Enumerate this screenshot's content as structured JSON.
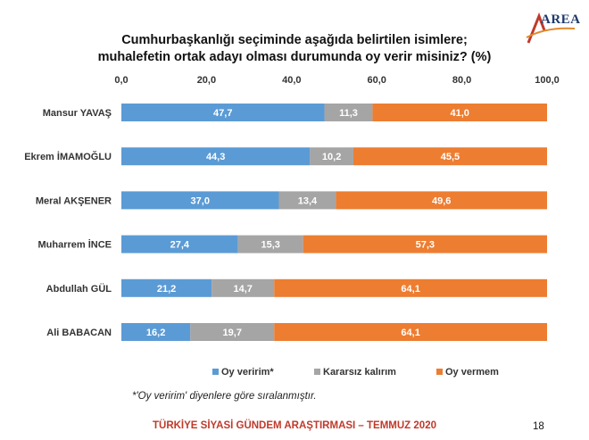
{
  "brand": {
    "logo_text": "AREA"
  },
  "chart_data": {
    "type": "bar",
    "orientation": "horizontal",
    "stacked": true,
    "title_line1": "Cumhurbaşkanlığı seçiminde aşağıda belirtilen isimlere;",
    "title_line2": "muhalefetin ortak adayı olması durumunda oy verir misiniz? (%)",
    "categories": [
      "Mansur YAVAŞ",
      "Ekrem İMAMOĞLU",
      "Meral AKŞENER",
      "Muharrem İNCE",
      "Abdullah GÜL",
      "Ali BABACAN"
    ],
    "series": [
      {
        "name": "Oy veririm*",
        "values": [
          47.7,
          44.3,
          37.0,
          27.4,
          21.2,
          16.2
        ],
        "labels": [
          "47,7",
          "44,3",
          "37,0",
          "27,4",
          "21,2",
          "16,2"
        ],
        "color": "#5b9bd5"
      },
      {
        "name": "Kararsız kalırım",
        "values": [
          11.3,
          10.2,
          13.4,
          15.3,
          14.7,
          19.7
        ],
        "labels": [
          "11,3",
          "10,2",
          "13,4",
          "15,3",
          "14,7",
          "19,7"
        ],
        "color": "#a5a5a5"
      },
      {
        "name": "Oy vermem",
        "values": [
          41.0,
          45.5,
          49.6,
          57.3,
          64.1,
          64.1
        ],
        "labels": [
          "41,0",
          "45,5",
          "49,6",
          "57,3",
          "64,1",
          "64,1"
        ],
        "color": "#ed7d31"
      }
    ],
    "xlim": [
      0,
      100
    ],
    "x_ticks": [
      0,
      20,
      40,
      60,
      80,
      100
    ],
    "x_tick_labels": [
      "0,0",
      "20,0",
      "40,0",
      "60,0",
      "80,0",
      "100,0"
    ],
    "axis_position": "top",
    "grid": false,
    "legend_position": "bottom"
  },
  "footnote": "*'Oy veririm' diyenlere göre sıralanmıştır.",
  "survey_title": "TÜRKİYE SİYASİ GÜNDEM ARAŞTIRMASI – TEMMUZ 2020",
  "page_number": "18"
}
